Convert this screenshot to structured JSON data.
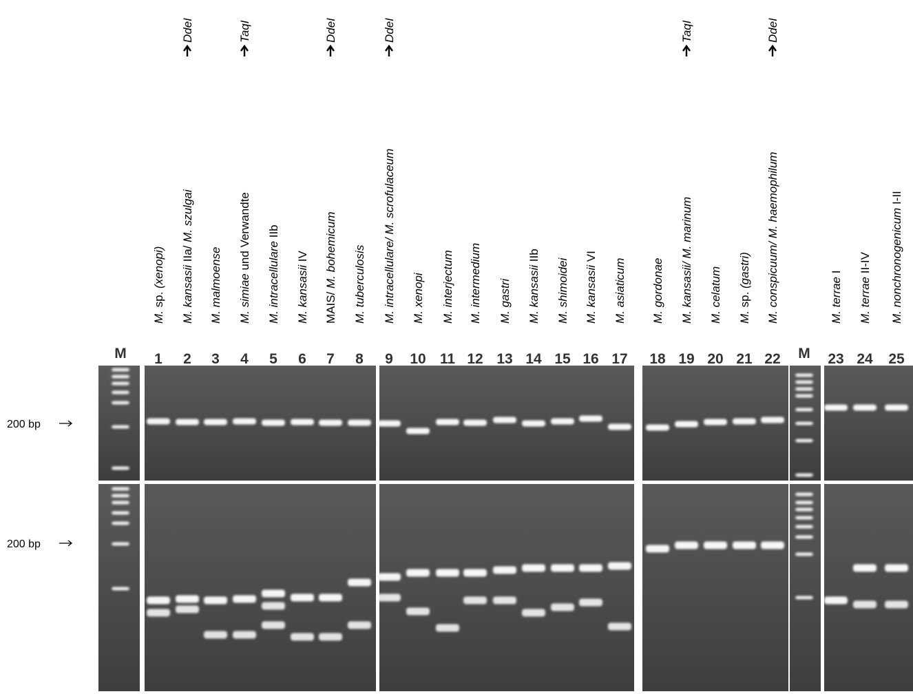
{
  "markers": [
    "M",
    "M"
  ],
  "size_labels": [
    "200 bp",
    "200 bp"
  ],
  "lanes": [
    {
      "number": 1,
      "label": [
        {
          "text": "M.",
          "italic": true
        },
        {
          "text": " sp. ",
          "italic": false
        },
        {
          "text": "(xenopi)",
          "italic": true
        }
      ]
    },
    {
      "number": 2,
      "label": [
        {
          "text": "M. kansasii",
          "italic": true
        },
        {
          "text": " IIa/ ",
          "italic": false
        },
        {
          "text": "M. szulgai",
          "italic": true
        }
      ],
      "enzyme": "DdeI"
    },
    {
      "number": 3,
      "label": [
        {
          "text": "M. malmoense",
          "italic": true
        }
      ]
    },
    {
      "number": 4,
      "label": [
        {
          "text": "M. simiae",
          "italic": true
        },
        {
          "text": "  und Verwandte",
          "italic": false
        }
      ],
      "enzyme": "TaqI"
    },
    {
      "number": 5,
      "label": [
        {
          "text": "M. intracellulare",
          "italic": true
        },
        {
          "text": " IIb",
          "italic": false
        }
      ]
    },
    {
      "number": 6,
      "label": [
        {
          "text": "M. kansasii",
          "italic": true
        },
        {
          "text": " IV",
          "italic": false
        }
      ]
    },
    {
      "number": 7,
      "label": [
        {
          "text": "MAIS/ ",
          "italic": false
        },
        {
          "text": "M. bohemicum",
          "italic": true
        }
      ],
      "enzyme": "DdeI"
    },
    {
      "number": 8,
      "label": [
        {
          "text": "M. tuberculosis",
          "italic": true
        }
      ]
    },
    {
      "number": 9,
      "label": [
        {
          "text": "M. intracellulare/ M. scrofulaceum",
          "italic": true
        }
      ],
      "enzyme": "DdeI"
    },
    {
      "number": 10,
      "label": [
        {
          "text": "M. xenopi",
          "italic": true
        }
      ]
    },
    {
      "number": 11,
      "label": [
        {
          "text": "M. interjectum",
          "italic": true
        }
      ]
    },
    {
      "number": 12,
      "label": [
        {
          "text": "M. intermedium",
          "italic": true
        }
      ]
    },
    {
      "number": 13,
      "label": [
        {
          "text": "M. gastri",
          "italic": true
        }
      ]
    },
    {
      "number": 14,
      "label": [
        {
          "text": "M. kansasii",
          "italic": true
        },
        {
          "text": " IIb",
          "italic": false
        }
      ]
    },
    {
      "number": 15,
      "label": [
        {
          "text": "M. shimoidei",
          "italic": true
        }
      ]
    },
    {
      "number": 16,
      "label": [
        {
          "text": "M. kansasii",
          "italic": true
        },
        {
          "text": " VI",
          "italic": false
        }
      ]
    },
    {
      "number": 17,
      "label": [
        {
          "text": "M. asiaticum",
          "italic": true
        }
      ]
    },
    {
      "number": 18,
      "label": [
        {
          "text": "M. gordonae",
          "italic": true
        }
      ]
    },
    {
      "number": 19,
      "label": [
        {
          "text": "M. kansasii/ M. marinum",
          "italic": true
        }
      ],
      "enzyme": "TaqI"
    },
    {
      "number": 20,
      "label": [
        {
          "text": "M. celatum",
          "italic": true
        }
      ]
    },
    {
      "number": 21,
      "label": [
        {
          "text": "M.",
          "italic": true
        },
        {
          "text": " sp. ",
          "italic": false
        },
        {
          "text": "(gastri)",
          "italic": true
        }
      ]
    },
    {
      "number": 22,
      "label": [
        {
          "text": "M. conspicuum/ M. haemophilum",
          "italic": true
        }
      ],
      "enzyme": "DdeI"
    },
    {
      "number": 23,
      "label": [
        {
          "text": "M. terrae",
          "italic": true
        },
        {
          "text": " I",
          "italic": false
        }
      ]
    },
    {
      "number": 24,
      "label": [
        {
          "text": "M. terrae",
          "italic": true
        },
        {
          "text": " II-IV",
          "italic": false
        }
      ]
    },
    {
      "number": 25,
      "label": [
        {
          "text": "M. nonchronogenicum",
          "italic": true
        },
        {
          "text": " I-II",
          "italic": false
        }
      ]
    }
  ]
}
